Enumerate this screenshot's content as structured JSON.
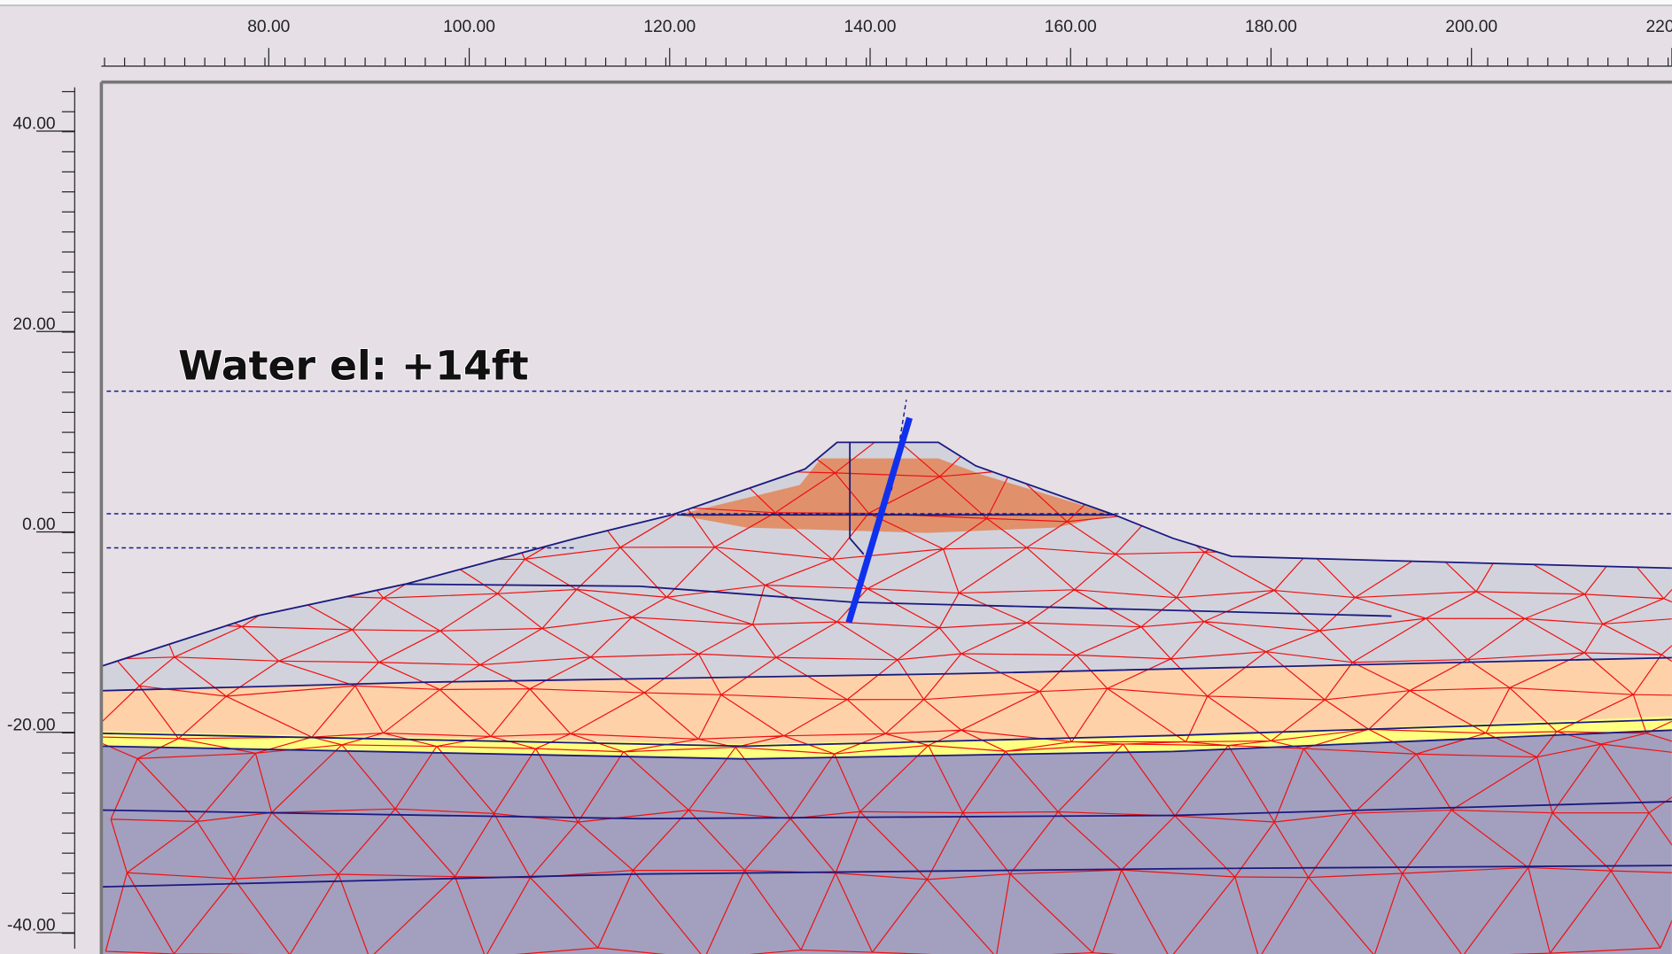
{
  "annotation": "Water el: +14ft",
  "x_ruler": {
    "ticks": [
      {
        "value": 80,
        "label": "80.00"
      },
      {
        "value": 100,
        "label": "100.00"
      },
      {
        "value": 120,
        "label": "120.00"
      },
      {
        "value": 140,
        "label": "140.00"
      },
      {
        "value": 160,
        "label": "160.00"
      },
      {
        "value": 180,
        "label": "180.00"
      },
      {
        "value": 200,
        "label": "200.00"
      },
      {
        "value": 220,
        "label": "220.00"
      }
    ]
  },
  "y_ruler": {
    "ticks": [
      {
        "value": 40,
        "label": "40.00"
      },
      {
        "value": 20,
        "label": "20.00"
      },
      {
        "value": 0,
        "label": "0.00"
      },
      {
        "value": -20,
        "label": "-20.00"
      },
      {
        "value": -40,
        "label": "-40.00"
      }
    ]
  }
}
